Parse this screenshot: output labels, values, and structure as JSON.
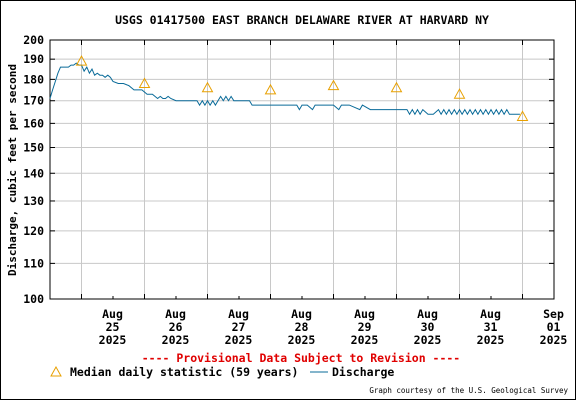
{
  "chart_data": {
    "type": "line",
    "title": "USGS 01417500 EAST BRANCH DELAWARE RIVER AT HARVARD NY",
    "ylabel": "Discharge, cubic feet per second",
    "xlabel": "",
    "y_scale": "log",
    "ylim": [
      100,
      200
    ],
    "y_ticks": [
      "200",
      "190",
      "180",
      "170",
      "160",
      "150",
      "140",
      "130",
      "120",
      "110",
      "100"
    ],
    "y_tick_values": [
      200,
      190,
      180,
      170,
      160,
      150,
      140,
      130,
      120,
      110,
      100
    ],
    "xlim": [
      "2025-08-24T12:00",
      "2025-09-01T12:00"
    ],
    "x_ticks": [
      {
        "line1": "Aug",
        "line2": "25",
        "line3": "2025",
        "at": "2025-08-25T00:00"
      },
      {
        "line1": "Aug",
        "line2": "26",
        "line3": "2025",
        "at": "2025-08-26T00:00"
      },
      {
        "line1": "Aug",
        "line2": "27",
        "line3": "2025",
        "at": "2025-08-27T00:00"
      },
      {
        "line1": "Aug",
        "line2": "28",
        "line3": "2025",
        "at": "2025-08-28T00:00"
      },
      {
        "line1": "Aug",
        "line2": "29",
        "line3": "2025",
        "at": "2025-08-29T00:00"
      },
      {
        "line1": "Aug",
        "line2": "30",
        "line3": "2025",
        "at": "2025-08-30T00:00"
      },
      {
        "line1": "Aug",
        "line2": "31",
        "line3": "2025",
        "at": "2025-08-31T00:00"
      },
      {
        "line1": "Sep",
        "line2": "01",
        "line3": "2025",
        "at": "2025-09-01T00:00"
      }
    ],
    "grid": true,
    "legend_placement": "bottom",
    "series": [
      {
        "name": "Discharge",
        "color": "#0a6b99",
        "points": [
          [
            "2025-08-24T12:00",
            171
          ],
          [
            "2025-08-24T13:00",
            175
          ],
          [
            "2025-08-24T14:00",
            179
          ],
          [
            "2025-08-24T15:00",
            183
          ],
          [
            "2025-08-24T16:00",
            186
          ],
          [
            "2025-08-24T17:00",
            186
          ],
          [
            "2025-08-24T18:00",
            186
          ],
          [
            "2025-08-24T19:00",
            186
          ],
          [
            "2025-08-24T20:00",
            187
          ],
          [
            "2025-08-24T21:00",
            187
          ],
          [
            "2025-08-24T22:00",
            188
          ],
          [
            "2025-08-24T23:00",
            187
          ],
          [
            "2025-08-25T00:00",
            187
          ],
          [
            "2025-08-25T01:00",
            184
          ],
          [
            "2025-08-25T02:00",
            186
          ],
          [
            "2025-08-25T03:00",
            183
          ],
          [
            "2025-08-25T04:00",
            185
          ],
          [
            "2025-08-25T05:00",
            182
          ],
          [
            "2025-08-25T06:00",
            183
          ],
          [
            "2025-08-25T07:00",
            182
          ],
          [
            "2025-08-25T08:00",
            182
          ],
          [
            "2025-08-25T09:00",
            181
          ],
          [
            "2025-08-25T10:00",
            182
          ],
          [
            "2025-08-25T11:00",
            181
          ],
          [
            "2025-08-25T12:00",
            179
          ],
          [
            "2025-08-25T14:00",
            178
          ],
          [
            "2025-08-25T16:00",
            178
          ],
          [
            "2025-08-25T18:00",
            177
          ],
          [
            "2025-08-25T20:00",
            175
          ],
          [
            "2025-08-25T23:00",
            175
          ],
          [
            "2025-08-26T01:00",
            173
          ],
          [
            "2025-08-26T03:00",
            173
          ],
          [
            "2025-08-26T04:00",
            172
          ],
          [
            "2025-08-26T05:00",
            171
          ],
          [
            "2025-08-26T06:00",
            172
          ],
          [
            "2025-08-26T07:00",
            171
          ],
          [
            "2025-08-26T08:00",
            171
          ],
          [
            "2025-08-26T09:00",
            172
          ],
          [
            "2025-08-26T10:00",
            171
          ],
          [
            "2025-08-26T12:00",
            170
          ],
          [
            "2025-08-26T16:00",
            170
          ],
          [
            "2025-08-26T20:00",
            170
          ],
          [
            "2025-08-26T21:00",
            168
          ],
          [
            "2025-08-26T22:00",
            170
          ],
          [
            "2025-08-26T23:00",
            168
          ],
          [
            "2025-08-27T00:00",
            170
          ],
          [
            "2025-08-27T01:00",
            168
          ],
          [
            "2025-08-27T02:00",
            170
          ],
          [
            "2025-08-27T03:00",
            168
          ],
          [
            "2025-08-27T04:00",
            170
          ],
          [
            "2025-08-27T05:00",
            172
          ],
          [
            "2025-08-27T06:00",
            170
          ],
          [
            "2025-08-27T07:00",
            172
          ],
          [
            "2025-08-27T08:00",
            170
          ],
          [
            "2025-08-27T09:00",
            172
          ],
          [
            "2025-08-27T10:00",
            170
          ],
          [
            "2025-08-27T12:00",
            170
          ],
          [
            "2025-08-27T16:00",
            170
          ],
          [
            "2025-08-27T17:00",
            168
          ],
          [
            "2025-08-27T18:00",
            168
          ],
          [
            "2025-08-28T00:00",
            168
          ],
          [
            "2025-08-28T06:00",
            168
          ],
          [
            "2025-08-28T10:00",
            168
          ],
          [
            "2025-08-28T11:00",
            166
          ],
          [
            "2025-08-28T12:00",
            168
          ],
          [
            "2025-08-28T14:00",
            168
          ],
          [
            "2025-08-28T16:00",
            166
          ],
          [
            "2025-08-28T17:00",
            168
          ],
          [
            "2025-08-28T20:00",
            168
          ],
          [
            "2025-08-29T00:00",
            168
          ],
          [
            "2025-08-29T02:00",
            166
          ],
          [
            "2025-08-29T03:00",
            168
          ],
          [
            "2025-08-29T06:00",
            168
          ],
          [
            "2025-08-29T10:00",
            166
          ],
          [
            "2025-08-29T11:00",
            168
          ],
          [
            "2025-08-29T14:00",
            166
          ],
          [
            "2025-08-29T16:00",
            166
          ],
          [
            "2025-08-29T20:00",
            166
          ],
          [
            "2025-08-30T00:00",
            166
          ],
          [
            "2025-08-30T04:00",
            166
          ],
          [
            "2025-08-30T05:00",
            164
          ],
          [
            "2025-08-30T06:00",
            166
          ],
          [
            "2025-08-30T07:00",
            164
          ],
          [
            "2025-08-30T08:00",
            166
          ],
          [
            "2025-08-30T09:00",
            164
          ],
          [
            "2025-08-30T10:00",
            166
          ],
          [
            "2025-08-30T12:00",
            164
          ],
          [
            "2025-08-30T14:00",
            164
          ],
          [
            "2025-08-30T16:00",
            166
          ],
          [
            "2025-08-30T17:00",
            164
          ],
          [
            "2025-08-30T18:00",
            166
          ],
          [
            "2025-08-30T19:00",
            164
          ],
          [
            "2025-08-30T20:00",
            166
          ],
          [
            "2025-08-30T21:00",
            164
          ],
          [
            "2025-08-30T22:00",
            166
          ],
          [
            "2025-08-30T23:00",
            164
          ],
          [
            "2025-08-31T00:00",
            166
          ],
          [
            "2025-08-31T01:00",
            164
          ],
          [
            "2025-08-31T02:00",
            166
          ],
          [
            "2025-08-31T03:00",
            164
          ],
          [
            "2025-08-31T04:00",
            166
          ],
          [
            "2025-08-31T05:00",
            164
          ],
          [
            "2025-08-31T06:00",
            166
          ],
          [
            "2025-08-31T07:00",
            164
          ],
          [
            "2025-08-31T08:00",
            166
          ],
          [
            "2025-08-31T09:00",
            164
          ],
          [
            "2025-08-31T10:00",
            166
          ],
          [
            "2025-08-31T11:00",
            164
          ],
          [
            "2025-08-31T12:00",
            166
          ],
          [
            "2025-08-31T13:00",
            164
          ],
          [
            "2025-08-31T14:00",
            166
          ],
          [
            "2025-08-31T15:00",
            164
          ],
          [
            "2025-08-31T16:00",
            166
          ],
          [
            "2025-08-31T17:00",
            164
          ],
          [
            "2025-08-31T18:00",
            166
          ],
          [
            "2025-08-31T19:00",
            164
          ],
          [
            "2025-08-31T20:00",
            164
          ],
          [
            "2025-08-31T22:00",
            164
          ],
          [
            "2025-08-31T23:00",
            164
          ]
        ]
      },
      {
        "name": "Median daily statistic (59 years)",
        "color": "#e8a000",
        "marker": "triangle",
        "points": [
          [
            "2025-08-25T00:00",
            189
          ],
          [
            "2025-08-26T00:00",
            178
          ],
          [
            "2025-08-27T00:00",
            176
          ],
          [
            "2025-08-28T00:00",
            175
          ],
          [
            "2025-08-29T00:00",
            177
          ],
          [
            "2025-08-30T00:00",
            176
          ],
          [
            "2025-08-31T00:00",
            173
          ],
          [
            "2025-09-01T00:00",
            163
          ]
        ]
      }
    ],
    "provisional_note": "---- Provisional Data Subject to Revision ----",
    "legend": {
      "median_label": "Median daily statistic (59 years)",
      "discharge_label": "Discharge"
    },
    "credit": "Graph courtesy of the U.S. Geological Survey"
  }
}
